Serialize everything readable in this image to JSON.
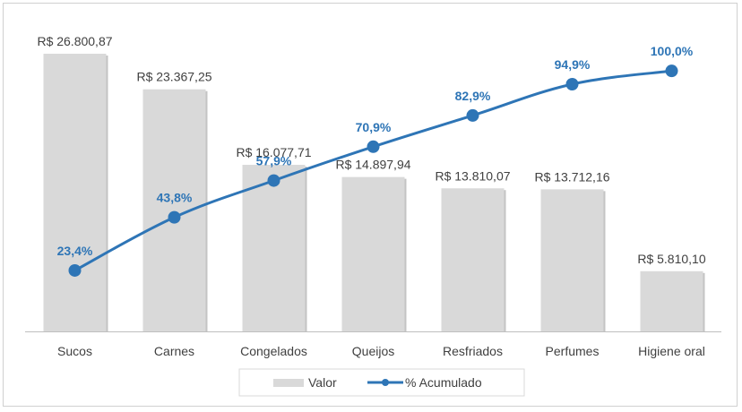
{
  "chart_data": {
    "type": "bar",
    "categories": [
      "Sucos",
      "Carnes",
      "Congelados",
      "Queijos",
      "Resfriados",
      "Perfumes",
      "Higiene oral"
    ],
    "series": [
      {
        "name": "Valor",
        "type": "bar",
        "values": [
          26800.87,
          23367.25,
          16077.71,
          14897.94,
          13810.07,
          13712.16,
          5810.1
        ],
        "labels": [
          "R$ 26.800,87",
          "R$ 23.367,25",
          "R$ 16.077,71",
          "R$ 14.897,94",
          "R$ 13.810,07",
          "R$ 13.712,16",
          "R$ 5.810,10"
        ],
        "color": "#d9d9d9"
      },
      {
        "name": "% Acumulado",
        "type": "line",
        "values": [
          23.4,
          43.8,
          57.9,
          70.9,
          82.9,
          94.9,
          100.0
        ],
        "labels": [
          "23,4%",
          "43,8%",
          "57,9%",
          "70,9%",
          "82,9%",
          "94,9%",
          "100,0%"
        ],
        "color": "#2e75b6"
      }
    ],
    "ylim": [
      0,
      30000
    ],
    "y2lim": [
      0,
      120
    ],
    "grid": false,
    "legend": "bottom"
  }
}
